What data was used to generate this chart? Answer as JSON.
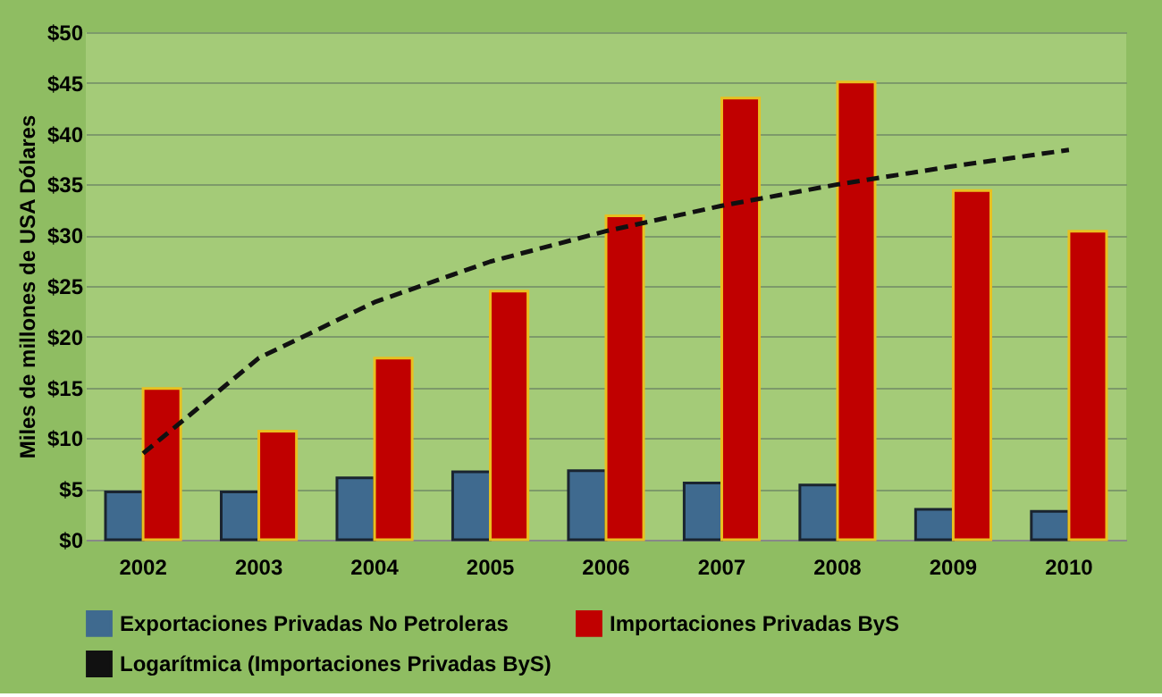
{
  "chart_data": {
    "type": "bar",
    "ylabel": "Miles de millones de USA Dólares",
    "categories": [
      "2002",
      "2003",
      "2004",
      "2005",
      "2006",
      "2007",
      "2008",
      "2009",
      "2010"
    ],
    "series": [
      {
        "name": "Exportaciones Privadas No Petroleras",
        "color": "#3f6a8f",
        "values": [
          4.7,
          4.7,
          6.1,
          6.7,
          6.8,
          5.6,
          5.4,
          3.0,
          2.8
        ]
      },
      {
        "name": "Importaciones Privadas ByS",
        "color": "#c00000",
        "values": [
          14.9,
          10.7,
          17.9,
          24.5,
          31.9,
          43.5,
          45.1,
          34.4,
          30.4
        ]
      },
      {
        "name": "Logarítmica (Importaciones Privadas ByS)",
        "type": "line",
        "color": "#111111",
        "line_style": "dashed",
        "values": [
          8.5,
          17.9,
          23.4,
          27.4,
          30.4,
          32.9,
          35.0,
          36.8,
          38.4
        ]
      }
    ],
    "ylim": [
      0,
      50
    ],
    "yticks": [
      {
        "value": 0,
        "label": "$0"
      },
      {
        "value": 5,
        "label": "$5"
      },
      {
        "value": 10,
        "label": "$10"
      },
      {
        "value": 15,
        "label": "$15"
      },
      {
        "value": 20,
        "label": "$20"
      },
      {
        "value": 25,
        "label": "$25"
      },
      {
        "value": 30,
        "label": "$30"
      },
      {
        "value": 35,
        "label": "$35"
      },
      {
        "value": 40,
        "label": "$40"
      },
      {
        "value": 45,
        "label": "$45"
      },
      {
        "value": 50,
        "label": "$50"
      }
    ],
    "grid": "y",
    "legend": "bottom"
  }
}
